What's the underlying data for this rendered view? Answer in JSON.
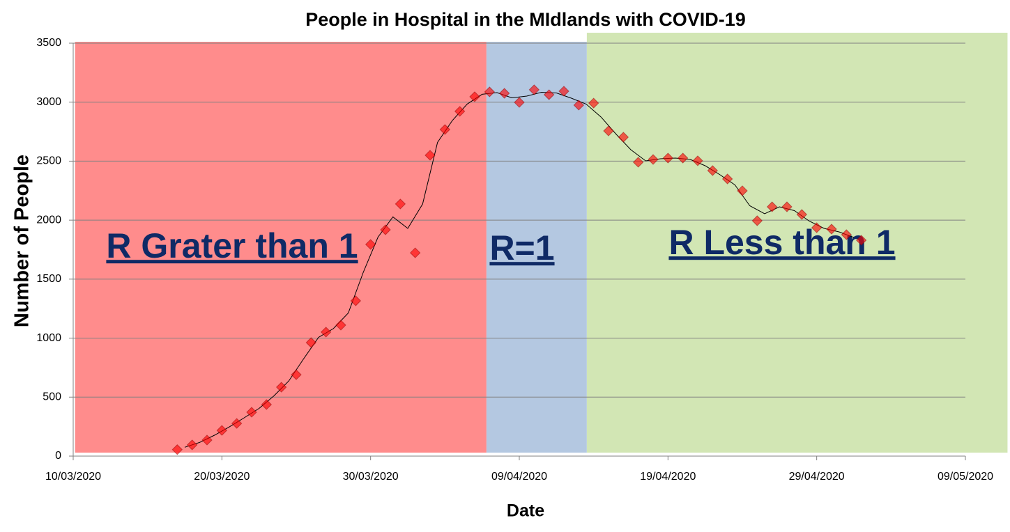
{
  "chart_data": {
    "type": "scatter",
    "title": "People in Hospital in the MIdlands with COVID-19",
    "x_label": "Date",
    "y_label": "Number of People",
    "xlim": [
      "10/03/2020",
      "09/05/2020"
    ],
    "xticks": [
      "10/03/2020",
      "20/03/2020",
      "30/03/2020",
      "09/04/2020",
      "19/04/2020",
      "29/04/2020",
      "09/05/2020"
    ],
    "ylim": [
      0,
      3500
    ],
    "yticks": [
      0,
      500,
      1000,
      1500,
      2000,
      2500,
      3000,
      3500
    ],
    "grid": true,
    "color": "#ff0000",
    "trendline_period": 2,
    "x": [
      "17/03/2020",
      "18/03/2020",
      "19/03/2020",
      "20/03/2020",
      "21/03/2020",
      "22/03/2020",
      "23/03/2020",
      "24/03/2020",
      "25/03/2020",
      "26/03/2020",
      "27/03/2020",
      "28/03/2020",
      "29/03/2020",
      "30/03/2020",
      "31/03/2020",
      "01/04/2020",
      "02/04/2020",
      "03/04/2020",
      "04/04/2020",
      "05/04/2020",
      "06/04/2020",
      "07/04/2020",
      "08/04/2020",
      "09/04/2020",
      "10/04/2020",
      "11/04/2020",
      "12/04/2020",
      "13/04/2020",
      "14/04/2020",
      "15/04/2020",
      "16/04/2020",
      "17/04/2020",
      "18/04/2020",
      "19/04/2020",
      "20/04/2020",
      "21/04/2020",
      "22/04/2020",
      "23/04/2020",
      "24/04/2020",
      "25/04/2020",
      "26/04/2020",
      "27/04/2020",
      "28/04/2020",
      "29/04/2020",
      "30/04/2020",
      "01/05/2020",
      "02/05/2020"
    ],
    "values": [
      55,
      95,
      136,
      218,
      277,
      372,
      437,
      584,
      690,
      962,
      1051,
      1110,
      1316,
      1794,
      1918,
      2137,
      1723,
      2550,
      2768,
      2922,
      3046,
      3087,
      3075,
      2998,
      3105,
      3063,
      3093,
      2975,
      2992,
      2756,
      2703,
      2491,
      2514,
      2526,
      2526,
      2503,
      2420,
      2349,
      2249,
      1995,
      2113,
      2113,
      2048,
      1936,
      1924,
      1877,
      1830
    ],
    "regions": [
      {
        "label": "R Grater than 1",
        "color": "#ff8c8c",
        "from": "2020-03-10T03:00:00Z",
        "to": "2020-04-06T19:00:00Z"
      },
      {
        "label": "R=1",
        "color": "#b4c8e1",
        "from": "2020-04-06T19:00:00Z",
        "to": "2020-04-13T13:00:00Z"
      },
      {
        "label": "R Less than 1",
        "color": "#d2e6b4",
        "from": "2020-04-13T13:00:00Z",
        "to": "2020-05-11T20:00:00Z"
      }
    ]
  }
}
